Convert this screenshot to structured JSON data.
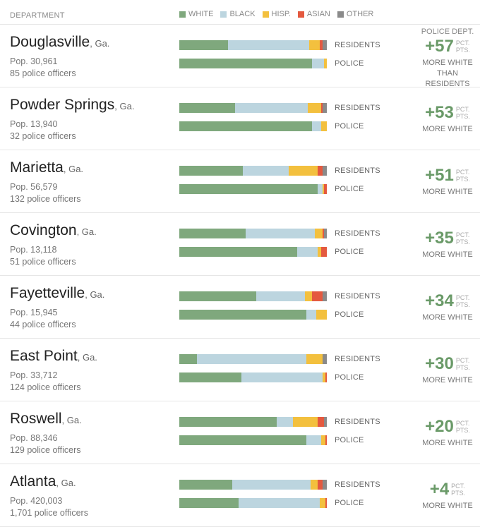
{
  "header": {
    "department_label": "DEPARTMENT",
    "legend": [
      {
        "label": "WHITE",
        "color": "#7fa87d"
      },
      {
        "label": "BLACK",
        "color": "#bcd5df"
      },
      {
        "label": "HISP.",
        "color": "#f3c03e"
      },
      {
        "label": "ASIAN",
        "color": "#e4593f"
      },
      {
        "label": "OTHER",
        "color": "#8a8a8a"
      }
    ]
  },
  "labels": {
    "residents": "RESIDENTS",
    "police": "POLICE",
    "unit_top": "PCT.",
    "unit_bottom": "PTS."
  },
  "chart_data": {
    "type": "bar",
    "categories": [
      "White",
      "Black",
      "Hispanic",
      "Asian",
      "Other"
    ],
    "rows": [
      {
        "city": "Douglasville",
        "state": ", Ga.",
        "pop": "Pop. 30,961",
        "officers": "85 police officers",
        "residents": [
          33,
          55,
          7,
          2,
          3
        ],
        "police": [
          90,
          8,
          2,
          0,
          0
        ],
        "diff": "+57",
        "pretitle": "POLICE DEPT.",
        "caption": [
          "MORE WHITE",
          "THAN RESIDENTS"
        ]
      },
      {
        "city": "Powder Springs",
        "state": ", Ga.",
        "pop": "Pop. 13,940",
        "officers": "32 police officers",
        "residents": [
          38,
          49,
          9,
          1,
          3
        ],
        "police": [
          90,
          6,
          4,
          0,
          0
        ],
        "diff": "+53",
        "caption": [
          "MORE WHITE"
        ]
      },
      {
        "city": "Marietta",
        "state": ", Ga.",
        "pop": "Pop. 56,579",
        "officers": "132 police officers",
        "residents": [
          43,
          31,
          20,
          3,
          3
        ],
        "police": [
          94,
          3,
          1,
          2,
          0
        ],
        "diff": "+51",
        "caption": [
          "MORE WHITE"
        ]
      },
      {
        "city": "Covington",
        "state": ", Ga.",
        "pop": "Pop. 13,118",
        "officers": "51 police officers",
        "residents": [
          45,
          47,
          5,
          1,
          2
        ],
        "police": [
          80,
          14,
          2,
          4,
          0
        ],
        "diff": "+35",
        "caption": [
          "MORE WHITE"
        ]
      },
      {
        "city": "Fayetteville",
        "state": ", Ga.",
        "pop": "Pop. 15,945",
        "officers": "44 police officers",
        "residents": [
          52,
          33,
          5,
          7,
          3
        ],
        "police": [
          86,
          7,
          7,
          0,
          0
        ],
        "diff": "+34",
        "caption": [
          "MORE WHITE"
        ]
      },
      {
        "city": "East Point",
        "state": ", Ga.",
        "pop": "Pop. 33,712",
        "officers": "124 police officers",
        "residents": [
          12,
          74,
          11,
          0,
          3
        ],
        "police": [
          42,
          55,
          2,
          1,
          0
        ],
        "diff": "+30",
        "caption": [
          "MORE WHITE"
        ]
      },
      {
        "city": "Roswell",
        "state": ", Ga.",
        "pop": "Pop. 88,346",
        "officers": "129 police officers",
        "residents": [
          66,
          11,
          17,
          4,
          2
        ],
        "police": [
          86,
          10,
          3,
          1,
          0
        ],
        "diff": "+20",
        "caption": [
          "MORE WHITE"
        ]
      },
      {
        "city": "Atlanta",
        "state": ", Ga.",
        "pop": "Pop. 420,003",
        "officers": "1,701 police officers",
        "residents": [
          36,
          53,
          5,
          3,
          3
        ],
        "police": [
          40,
          55,
          4,
          1,
          0
        ],
        "diff": "+4",
        "caption": [
          "MORE WHITE"
        ]
      }
    ]
  }
}
